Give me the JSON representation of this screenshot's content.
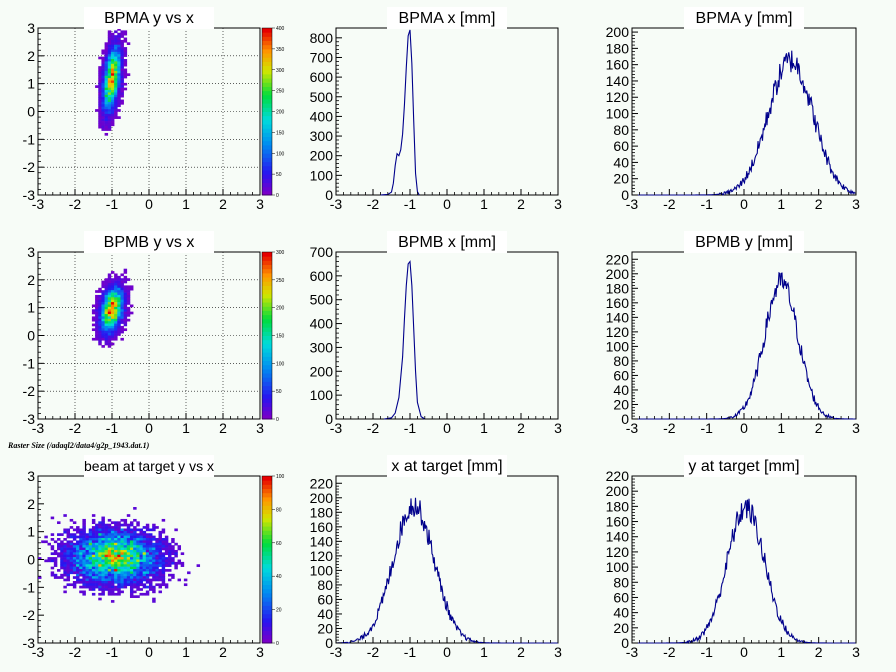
{
  "caption": "Raster Size (/adaql2/data4/g2p_1943.dat.1)",
  "colors": {
    "background": "#f7fcf7",
    "hist_line": "#00008b",
    "axis": "#000000",
    "title_box": "#ffffff"
  },
  "chart_data": [
    {
      "type": "heatmap",
      "title": "BPMA y vs x",
      "xlim": [
        -3,
        3
      ],
      "ylim": [
        -3,
        3
      ],
      "xticks": [
        "-3",
        "-2",
        "-1",
        "0",
        "1",
        "2",
        "3"
      ],
      "yticks": [
        "-3",
        "-2",
        "-1",
        "0",
        "1",
        "2",
        "3"
      ],
      "grid": true,
      "peak": {
        "x": -1.0,
        "y": 1.2
      },
      "sigma_x": 0.13,
      "sigma_y": 0.65,
      "rho": 0.45,
      "z_max": 400,
      "z_ticks": [
        "0",
        "50",
        "100",
        "150",
        "200",
        "250",
        "300",
        "350",
        "400"
      ]
    },
    {
      "type": "line",
      "title": "BPMA x [mm]",
      "xlim": [
        -3,
        3
      ],
      "ylim": [
        0,
        850
      ],
      "xticks": [
        "-3",
        "-2",
        "-1",
        "0",
        "1",
        "2",
        "3"
      ],
      "yticks": [
        "0",
        "100",
        "200",
        "300",
        "400",
        "500",
        "600",
        "700",
        "800"
      ],
      "x": [
        -1.8,
        -1.6,
        -1.5,
        -1.45,
        -1.4,
        -1.35,
        -1.3,
        -1.25,
        -1.2,
        -1.15,
        -1.1,
        -1.05,
        -1.0,
        -0.95,
        -0.9,
        -0.85,
        -0.8,
        -0.75
      ],
      "y": [
        0,
        3,
        15,
        60,
        150,
        210,
        200,
        230,
        310,
        460,
        650,
        810,
        840,
        670,
        380,
        110,
        18,
        0
      ]
    },
    {
      "type": "line",
      "title": "BPMA y [mm]",
      "xlim": [
        -3,
        3
      ],
      "ylim": [
        0,
        205
      ],
      "xticks": [
        "-3",
        "-2",
        "-1",
        "0",
        "1",
        "2",
        "3"
      ],
      "yticks": [
        "0",
        "20",
        "40",
        "60",
        "80",
        "100",
        "120",
        "140",
        "160",
        "180",
        "200"
      ],
      "mean": 1.25,
      "sigma": 0.6,
      "peak": 165,
      "noise": 16
    },
    {
      "type": "heatmap",
      "title": "BPMB y vs x",
      "xlim": [
        -3,
        3
      ],
      "ylim": [
        -3,
        3
      ],
      "xticks": [
        "-3",
        "-2",
        "-1",
        "0",
        "1",
        "2",
        "3"
      ],
      "yticks": [
        "-3",
        "-2",
        "-1",
        "0",
        "1",
        "2",
        "3"
      ],
      "grid": true,
      "peak": {
        "x": -1.0,
        "y": 0.95
      },
      "sigma_x": 0.17,
      "sigma_y": 0.45,
      "rho": 0.35,
      "z_max": 300,
      "z_ticks": [
        "0",
        "50",
        "100",
        "150",
        "200",
        "250",
        "300"
      ]
    },
    {
      "type": "line",
      "title": "BPMB x [mm]",
      "xlim": [
        -3,
        3
      ],
      "ylim": [
        0,
        700
      ],
      "xticks": [
        "-3",
        "-2",
        "-1",
        "0",
        "1",
        "2",
        "3"
      ],
      "yticks": [
        "0",
        "100",
        "200",
        "300",
        "400",
        "500",
        "600",
        "700"
      ],
      "x": [
        -1.7,
        -1.5,
        -1.4,
        -1.3,
        -1.2,
        -1.15,
        -1.1,
        -1.05,
        -1.0,
        -0.95,
        -0.9,
        -0.85,
        -0.8,
        -0.7,
        -0.6
      ],
      "y": [
        0,
        5,
        25,
        90,
        260,
        420,
        560,
        650,
        660,
        560,
        380,
        200,
        70,
        10,
        0
      ]
    },
    {
      "type": "line",
      "title": "BPMB y [mm]",
      "xlim": [
        -3,
        3
      ],
      "ylim": [
        0,
        230
      ],
      "xticks": [
        "-3",
        "-2",
        "-1",
        "0",
        "1",
        "2",
        "3"
      ],
      "yticks": [
        "0",
        "20",
        "40",
        "60",
        "80",
        "100",
        "120",
        "140",
        "160",
        "180",
        "200",
        "220"
      ],
      "mean": 1.0,
      "sigma": 0.45,
      "peak": 188,
      "noise": 16
    },
    {
      "type": "heatmap",
      "title": "beam at target y vs x",
      "xlim": [
        -3,
        3
      ],
      "ylim": [
        -3,
        3
      ],
      "xticks": [
        "-3",
        "-2",
        "-1",
        "0",
        "1",
        "2",
        "3"
      ],
      "yticks": [
        "-3",
        "-2",
        "-1",
        "0",
        "1",
        "2",
        "3"
      ],
      "grid": false,
      "peak": {
        "x": -0.9,
        "y": 0.1
      },
      "sigma_x": 0.65,
      "sigma_y": 0.5,
      "rho": 0.0,
      "z_max": 100,
      "z_ticks": [
        "0",
        "20",
        "40",
        "60",
        "80",
        "100"
      ]
    },
    {
      "type": "line",
      "title": "x at target [mm]",
      "xlim": [
        -3,
        3
      ],
      "ylim": [
        0,
        230
      ],
      "xticks": [
        "-3",
        "-2",
        "-1",
        "0",
        "1",
        "2",
        "3"
      ],
      "yticks": [
        "0",
        "20",
        "40",
        "60",
        "80",
        "100",
        "120",
        "140",
        "160",
        "180",
        "200",
        "220"
      ],
      "mean": -0.9,
      "sigma": 0.55,
      "peak": 190,
      "noise": 16
    },
    {
      "type": "line",
      "title": "y at target [mm]",
      "xlim": [
        -3,
        3
      ],
      "ylim": [
        0,
        220
      ],
      "xticks": [
        "-3",
        "-2",
        "-1",
        "0",
        "1",
        "2",
        "3"
      ],
      "yticks": [
        "0",
        "20",
        "40",
        "60",
        "80",
        "100",
        "120",
        "140",
        "160",
        "180",
        "200",
        "220"
      ],
      "mean": 0.05,
      "sigma": 0.5,
      "peak": 178,
      "noise": 16
    }
  ]
}
